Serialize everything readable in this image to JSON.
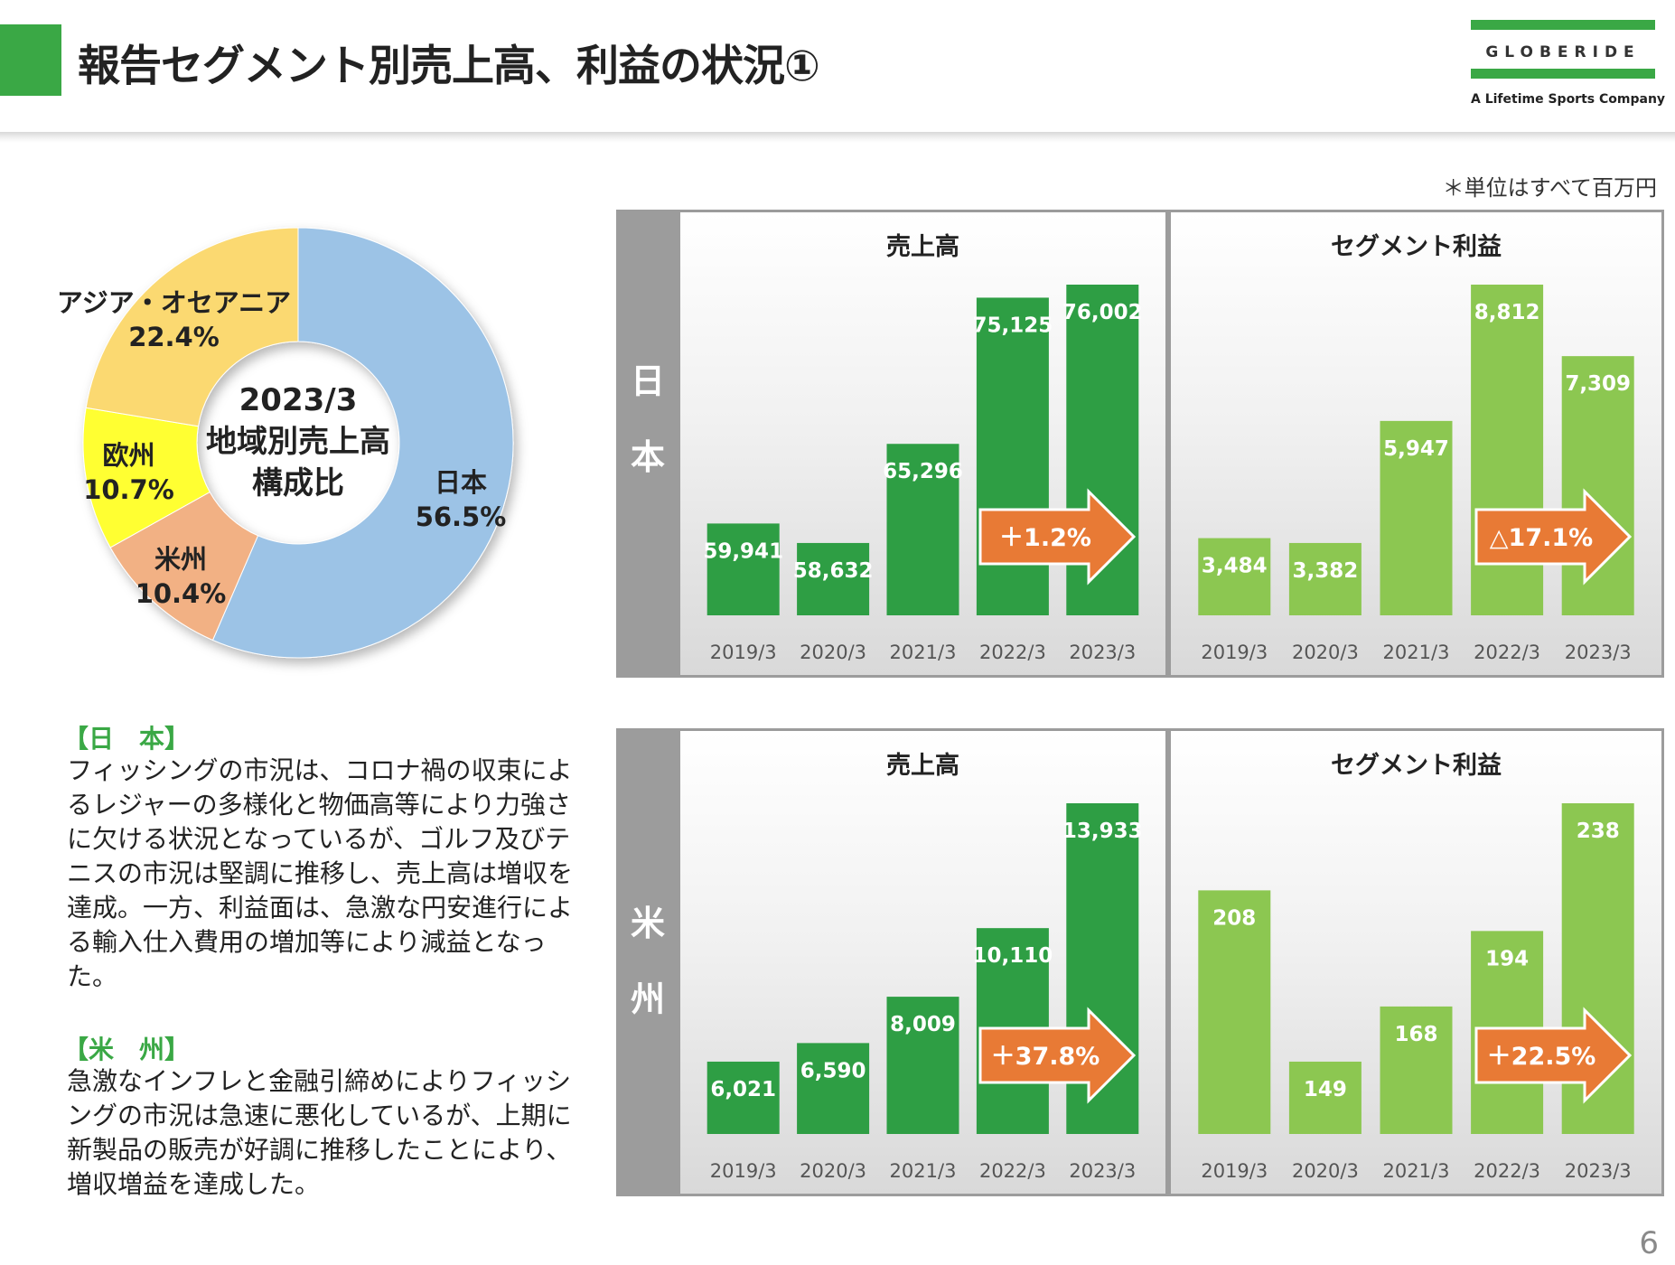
{
  "header": {
    "title": "報告セグメント別売上高、利益の状況①",
    "logo_word": "GLOBERIDE",
    "logo_tagline": "A Lifetime Sports Company"
  },
  "unit_note": "＊単位はすべて百万円",
  "colors": {
    "brand_green": "#3aa845",
    "bar_dark_green": "#2e9e44",
    "bar_light_green": "#8cc751",
    "arrow_orange": "#e87a35",
    "donut_japan": "#9cc3e6",
    "donut_america": "#f2b184",
    "donut_europe": "#ffff33",
    "donut_asia": "#fbd971"
  },
  "donut": {
    "center_lines": [
      "2023/3",
      "地域別売上高",
      "構成比"
    ],
    "labels": {
      "japan_name": "日本",
      "japan_pct": "56.5%",
      "america_name": "米州",
      "america_pct": "10.4%",
      "europe_name": "欧州",
      "europe_pct": "10.7%",
      "asia_name": "アジア・オセアニア",
      "asia_pct": "22.4%"
    }
  },
  "commentary": {
    "japan_head": "【日　本】",
    "japan_body": "フィッシングの市況は、コロナ禍の収束によるレジャーの多様化と物価高等により力強さに欠ける状況となっているが、ゴルフ及びテニスの市況は堅調に推移し、売上高は増収を達成。一方、利益面は、急激な円安進行による輸入仕入費用の増加等により減益となった。",
    "america_head": "【米　州】",
    "america_body": "急激なインフレと金融引締めによりフィッシングの市況は急速に悪化しているが、上期に新製品の販売が好調に推移したことにより、増収増益を達成した。"
  },
  "regions": {
    "japan": [
      "日",
      "本"
    ],
    "america": [
      "米",
      "州"
    ]
  },
  "chart_titles": {
    "sales": "売上高",
    "profit": "セグメント利益"
  },
  "page_number": "6",
  "chart_data": [
    {
      "type": "pie",
      "title": "2023/3 地域別売上高構成比",
      "categories": [
        "日本",
        "米州",
        "欧州",
        "アジア・オセアニア"
      ],
      "values": [
        56.5,
        10.4,
        10.7,
        22.4
      ],
      "unit": "%"
    },
    {
      "type": "bar",
      "region": "日本",
      "title": "売上高",
      "categories": [
        "2019/3",
        "2020/3",
        "2021/3",
        "2022/3",
        "2023/3"
      ],
      "values": [
        59941,
        58632,
        65296,
        75125,
        76002
      ],
      "value_labels": [
        "59,941",
        "58,632",
        "65,296",
        "75,125",
        "76,002"
      ],
      "change_label": "＋1.2%"
    },
    {
      "type": "bar",
      "region": "日本",
      "title": "セグメント利益",
      "categories": [
        "2019/3",
        "2020/3",
        "2021/3",
        "2022/3",
        "2023/3"
      ],
      "values": [
        3484,
        3382,
        5947,
        8812,
        7309
      ],
      "value_labels": [
        "3,484",
        "3,382",
        "5,947",
        "8,812",
        "7,309"
      ],
      "change_label": "△17.1%"
    },
    {
      "type": "bar",
      "region": "米州",
      "title": "売上高",
      "categories": [
        "2019/3",
        "2020/3",
        "2021/3",
        "2022/3",
        "2023/3"
      ],
      "values": [
        6021,
        6590,
        8009,
        10110,
        13933
      ],
      "value_labels": [
        "6,021",
        "6,590",
        "8,009",
        "10,110",
        "13,933"
      ],
      "change_label": "＋37.8%"
    },
    {
      "type": "bar",
      "region": "米州",
      "title": "セグメント利益",
      "categories": [
        "2019/3",
        "2020/3",
        "2021/3",
        "2022/3",
        "2023/3"
      ],
      "values": [
        208,
        149,
        168,
        194,
        238
      ],
      "value_labels": [
        "208",
        "149",
        "168",
        "194",
        "238"
      ],
      "change_label": "＋22.5%"
    }
  ]
}
